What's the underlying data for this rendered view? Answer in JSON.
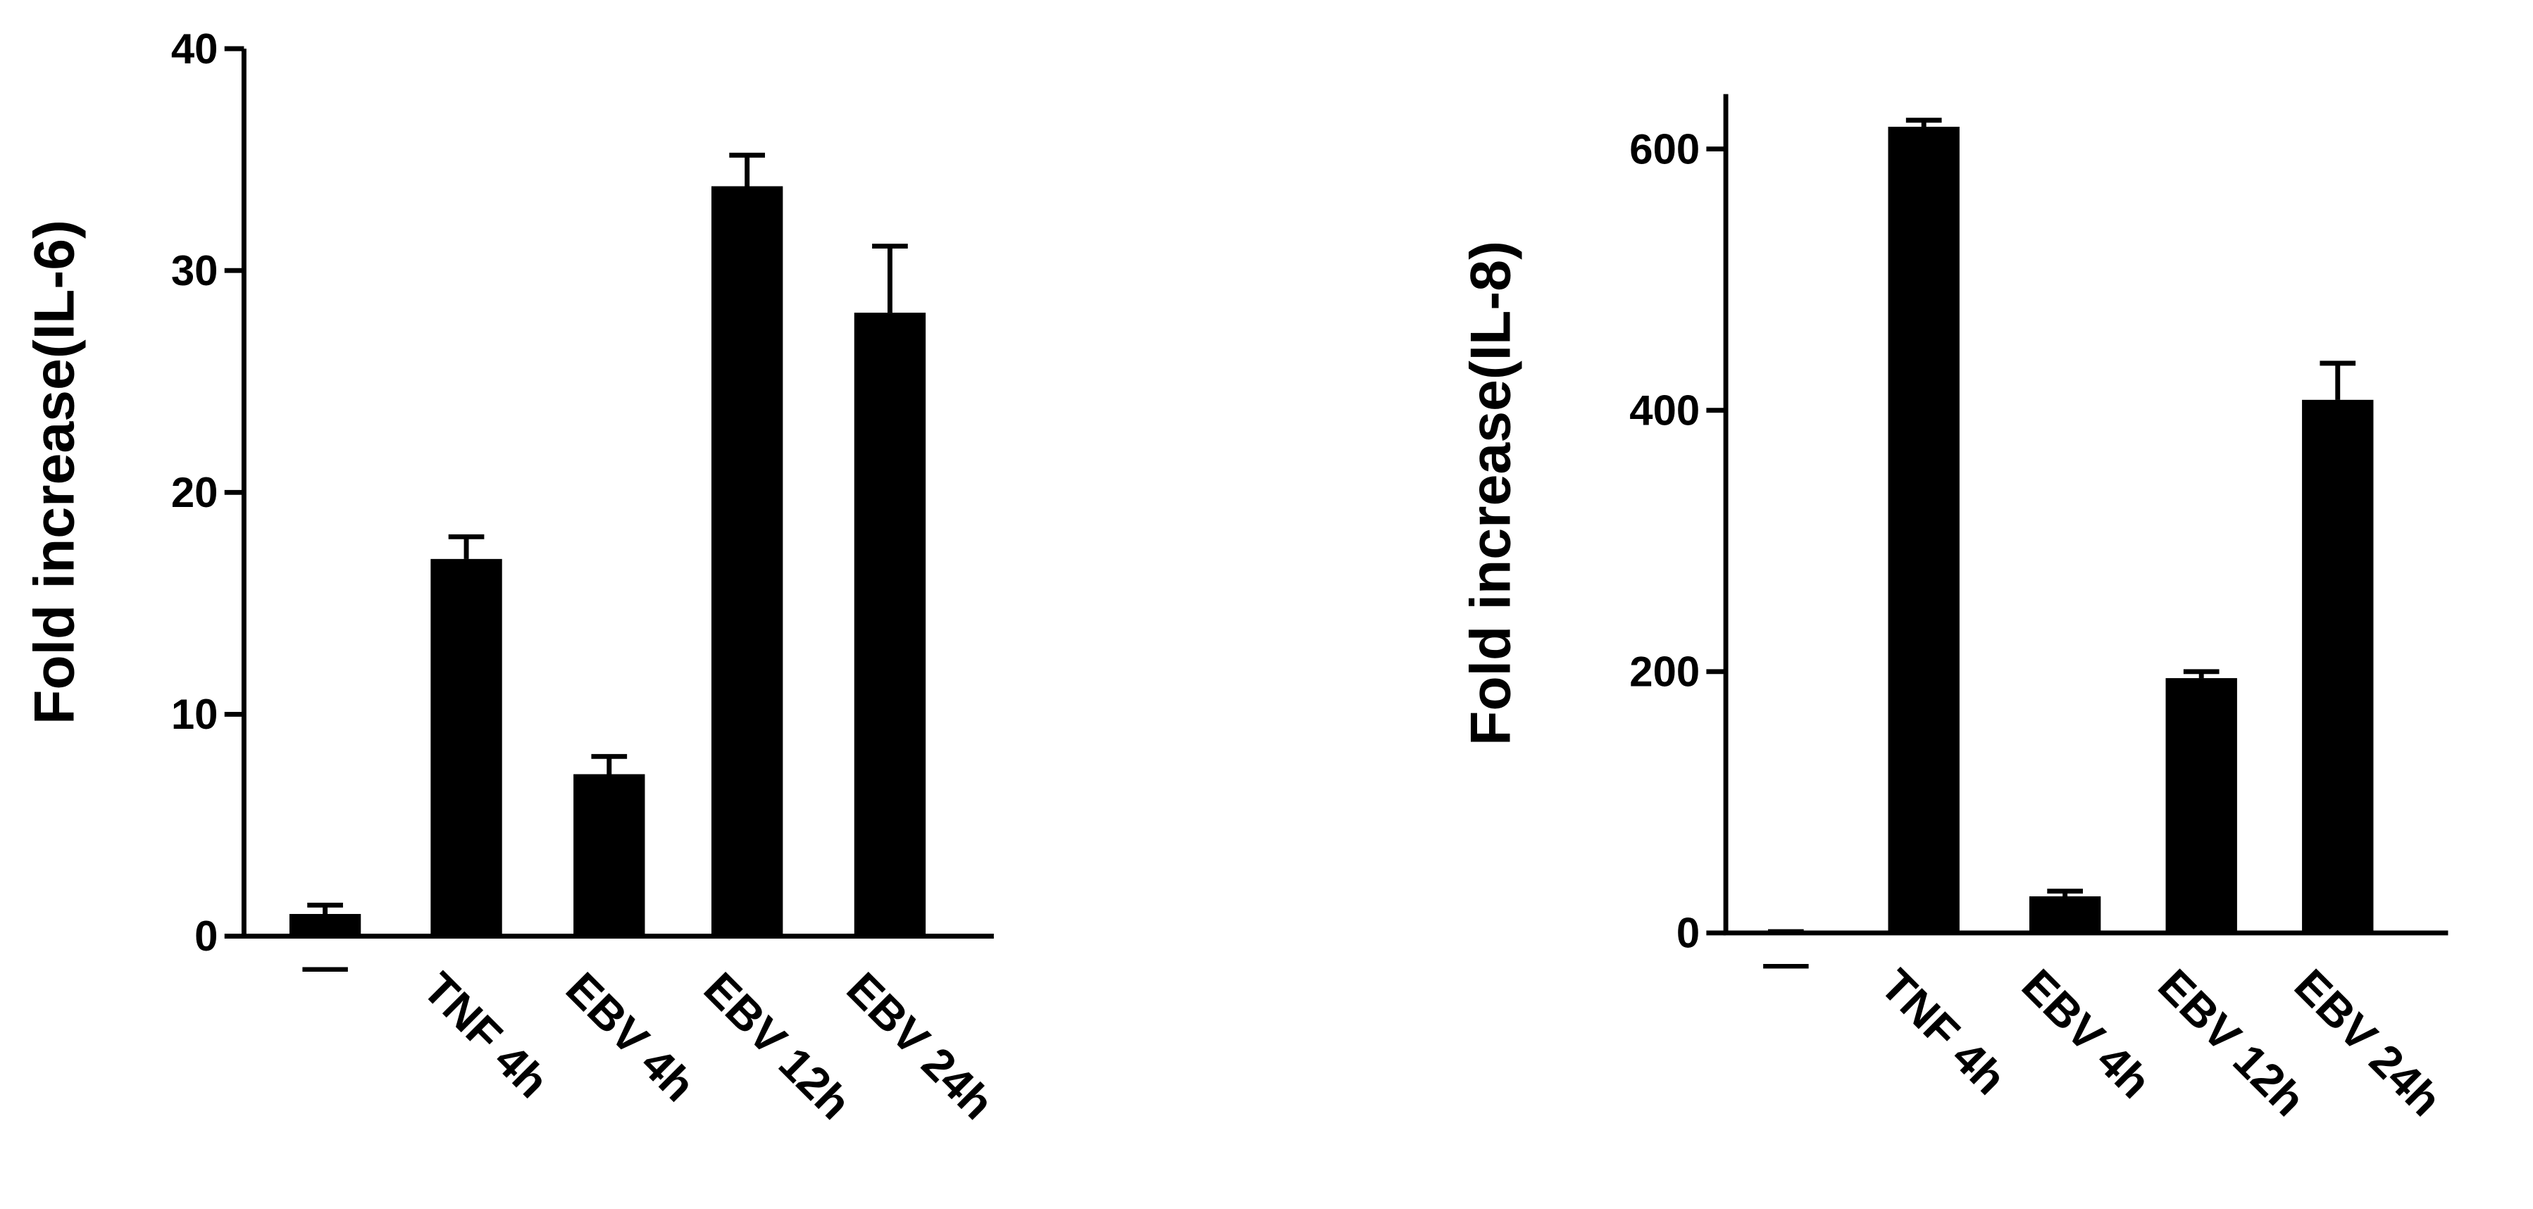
{
  "chart_data": [
    {
      "type": "bar",
      "y_label": "Fold increase(IL-6)",
      "categories": [
        "—",
        "TNF 4h",
        "EBV 4h",
        "EBV 12h",
        "EBV 24h"
      ],
      "values": [
        1.0,
        17.0,
        7.3,
        33.8,
        28.1
      ],
      "errors": [
        0.4,
        1.0,
        0.8,
        1.4,
        3.0
      ],
      "color": "#000000",
      "ylim": [
        0,
        40
      ],
      "yticks": [
        0,
        10,
        20,
        30,
        40
      ]
    },
    {
      "type": "bar",
      "y_label": "Fold increase(IL-8)",
      "categories": [
        "—",
        "TNF 4h",
        "EBV 4h",
        "EBV 12h",
        "EBV 24h"
      ],
      "values": [
        1,
        617,
        28,
        195,
        408
      ],
      "errors": [
        0,
        5,
        4,
        5,
        28
      ],
      "color": "#000000",
      "ylim": [
        0,
        642
      ],
      "yticks": [
        0,
        200,
        400,
        600
      ]
    }
  ]
}
